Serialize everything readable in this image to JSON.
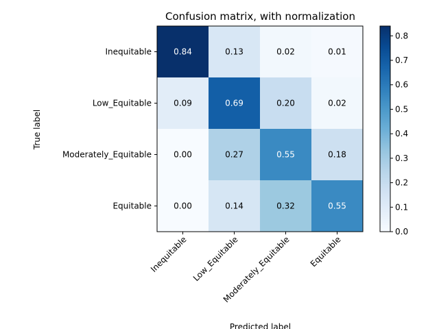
{
  "chart_data": {
    "type": "heatmap",
    "title": "Confusion matrix, with normalization",
    "xlabel": "Predicted label",
    "ylabel": "True label",
    "x_categories": [
      "Inequitable",
      "Low_Equitable",
      "Moderately_Equitable",
      "Equitable"
    ],
    "y_categories": [
      "Inequitable",
      "Low_Equitable",
      "Moderately_Equitable",
      "Equitable"
    ],
    "values": [
      [
        0.84,
        0.13,
        0.02,
        0.01
      ],
      [
        0.09,
        0.69,
        0.2,
        0.02
      ],
      [
        0.0,
        0.27,
        0.55,
        0.18
      ],
      [
        0.0,
        0.14,
        0.32,
        0.55
      ]
    ],
    "value_format": "2 decimals",
    "colormap": "Blues",
    "colorbar": {
      "range": [
        0.0,
        0.84
      ],
      "ticks": [
        "0.0",
        "0.1",
        "0.2",
        "0.3",
        "0.4",
        "0.5",
        "0.6",
        "0.7",
        "0.8"
      ]
    },
    "x_tick_rotation": 45,
    "grid": false,
    "text_color_dark": "#000000",
    "text_color_light": "#ffffff"
  }
}
